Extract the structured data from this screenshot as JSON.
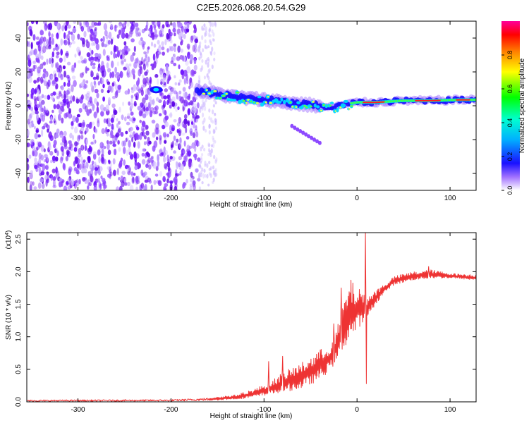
{
  "title": "C2E5.2026.068.20.54.G29",
  "chart_data": [
    {
      "type": "heatmap",
      "name": "spectrogram",
      "xlabel": "Height of straight line (km)",
      "ylabel": "Frequency (Hz)",
      "xlim": [
        -355,
        128
      ],
      "ylim": [
        -50,
        50
      ],
      "xticks": [
        -300,
        -200,
        -100,
        0,
        100
      ],
      "yticks": [
        -40,
        -20,
        0,
        20,
        40
      ],
      "colorbar": {
        "label": "Normalized spectral amplitude",
        "range": [
          0,
          1
        ],
        "ticks": [
          0.0,
          0.2,
          0.4,
          0.6,
          0.8
        ]
      },
      "noise_region": [
        -355,
        -170
      ],
      "features": [
        {
          "desc": "main band centre frequency (Hz) vs height (km)",
          "x": [
            -170,
            -150,
            -130,
            -110,
            -90,
            -70,
            -50,
            -30,
            -10,
            0,
            20,
            50,
            80,
            110,
            128
          ],
          "y": [
            9,
            7,
            5,
            4,
            3,
            1.5,
            0.5,
            -1,
            1,
            2,
            2,
            3,
            3,
            3.5,
            3.5
          ]
        },
        {
          "desc": "isolated blob",
          "x": -216,
          "y": 9.5
        },
        {
          "desc": "descending tail",
          "x": [
            -70,
            -40
          ],
          "y": [
            -12,
            -22
          ]
        }
      ]
    },
    {
      "type": "line",
      "name": "snr",
      "xlabel": "Height of straight line (km)",
      "ylabel": "SNR (10 * v/v)",
      "multiplier": "(x10",
      "exponent": "4",
      "xlim": [
        -355,
        128
      ],
      "ylim": [
        0,
        2.6
      ],
      "xticks": [
        -300,
        -200,
        -100,
        0,
        100
      ],
      "yticks": [
        0.0,
        0.5,
        1.0,
        1.5,
        2.0,
        2.5
      ],
      "color": "#ee3333",
      "envelope": {
        "x": [
          -355,
          -200,
          -160,
          -130,
          -110,
          -95,
          -80,
          -60,
          -45,
          -35,
          -25,
          -15,
          -8,
          -2,
          2,
          8,
          12,
          20,
          30,
          40,
          60,
          80,
          100,
          128
        ],
        "low": [
          0.005,
          0.01,
          0.02,
          0.04,
          0.07,
          0.1,
          0.15,
          0.2,
          0.3,
          0.4,
          0.55,
          0.8,
          0.95,
          1.05,
          1.15,
          1.2,
          1.3,
          1.5,
          1.68,
          1.8,
          1.87,
          1.9,
          1.9,
          1.87
        ],
        "high": [
          0.03,
          0.035,
          0.06,
          0.11,
          0.2,
          0.3,
          0.45,
          0.6,
          0.75,
          0.85,
          0.95,
          1.5,
          1.9,
          1.8,
          1.75,
          1.7,
          1.65,
          1.72,
          1.82,
          1.93,
          2.0,
          2.03,
          1.98,
          1.95
        ]
      },
      "spikes": [
        {
          "x": 9,
          "y": 2.6
        },
        {
          "x": 10,
          "y": 0.28
        },
        {
          "x": -17,
          "y": 1.75
        },
        {
          "x": -25,
          "y": 1.2
        },
        {
          "x": -95,
          "y": 0.62
        },
        {
          "x": -80,
          "y": 0.7
        },
        {
          "x": 77,
          "y": 2.08
        }
      ]
    }
  ]
}
